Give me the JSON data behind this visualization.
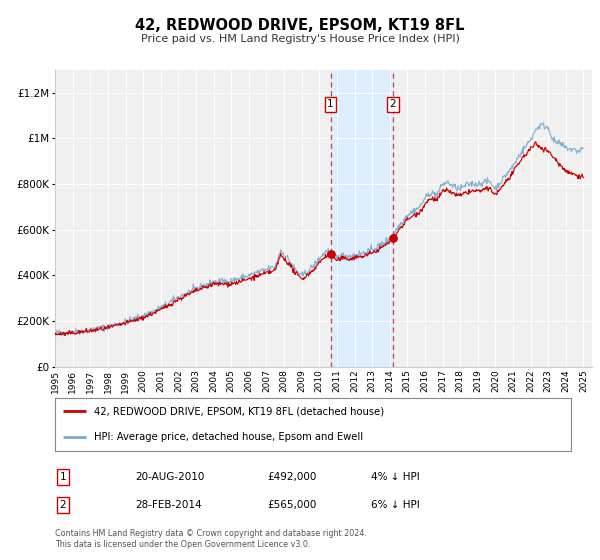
{
  "title": "42, REDWOOD DRIVE, EPSOM, KT19 8FL",
  "subtitle": "Price paid vs. HM Land Registry's House Price Index (HPI)",
  "ylim": [
    0,
    1300000
  ],
  "xlim_start": 1995.0,
  "xlim_end": 2025.5,
  "transaction1": {
    "date": 2010.64,
    "price": 492000,
    "label": "1",
    "date_str": "20-AUG-2010",
    "price_str": "£492,000",
    "pct": "4%"
  },
  "transaction2": {
    "date": 2014.17,
    "price": 565000,
    "label": "2",
    "date_str": "28-FEB-2014",
    "price_str": "£565,000",
    "pct": "6%"
  },
  "line1_color": "#cc0000",
  "line2_color": "#7aaad0",
  "bg_color": "#f0f0f0",
  "highlight_color": "#ddeeff",
  "legend1_label": "42, REDWOOD DRIVE, EPSOM, KT19 8FL (detached house)",
  "legend2_label": "HPI: Average price, detached house, Epsom and Ewell",
  "footer1": "Contains HM Land Registry data © Crown copyright and database right 2024.",
  "footer2": "This data is licensed under the Open Government Licence v3.0.",
  "yticks": [
    0,
    200000,
    400000,
    600000,
    800000,
    1000000,
    1200000
  ],
  "ytick_labels": [
    "£0",
    "£200K",
    "£400K",
    "£600K",
    "£800K",
    "£1M",
    "£1.2M"
  ],
  "xticks": [
    1995,
    1996,
    1997,
    1998,
    1999,
    2000,
    2001,
    2002,
    2003,
    2004,
    2005,
    2006,
    2007,
    2008,
    2009,
    2010,
    2011,
    2012,
    2013,
    2014,
    2015,
    2016,
    2017,
    2018,
    2019,
    2020,
    2021,
    2022,
    2023,
    2024,
    2025
  ]
}
